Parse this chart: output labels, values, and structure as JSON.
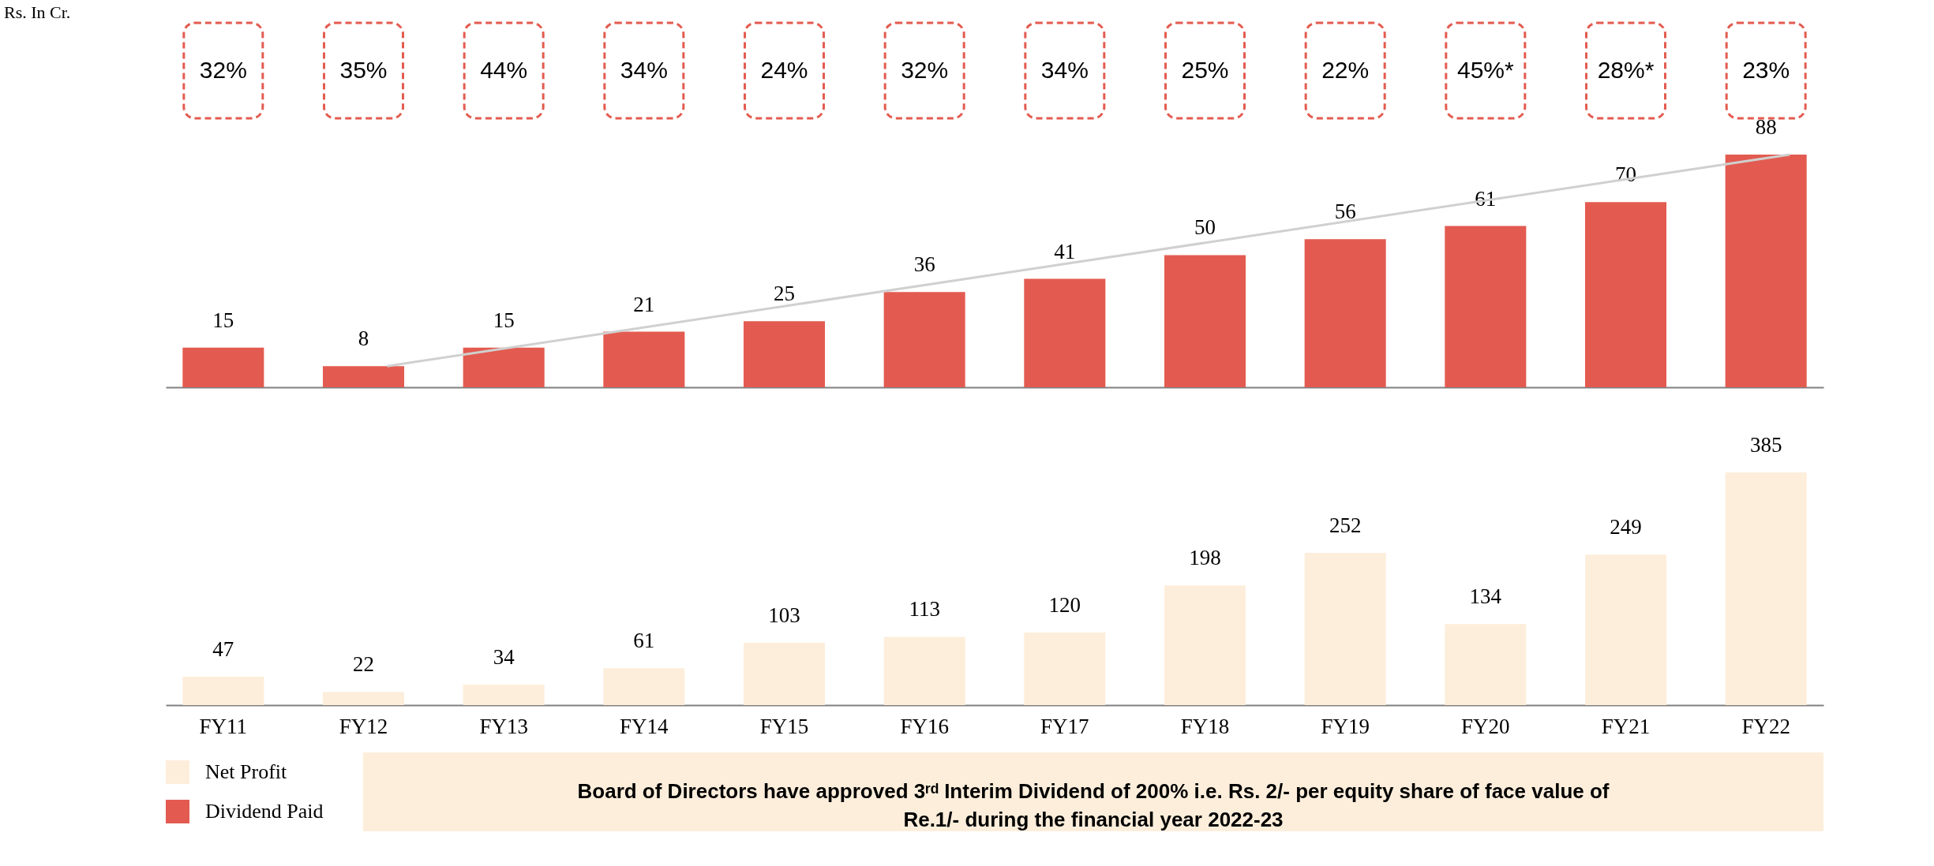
{
  "chart_data": [
    {
      "type": "bar",
      "ylabel": "Rs. In Cr.",
      "categories": [
        null,
        null,
        null,
        null,
        null,
        null,
        null,
        null,
        null,
        null,
        null,
        null
      ],
      "series": [
        {
          "name": "Dividend Paid",
          "color": "#e35b50",
          "values": [
            15,
            8,
            15,
            21,
            25,
            36,
            41,
            50,
            56,
            61,
            70,
            88
          ]
        }
      ],
      "data_labels": true,
      "tick_labels": false,
      "legend": "bottom left",
      "annotations": [
        "32%",
        "35%",
        "44%",
        "34%",
        "24%",
        "32%",
        "34%",
        "25%",
        "22%",
        "45%*",
        "28%*",
        "23%"
      ]
    },
    {
      "type": "bar",
      "categories": [
        "FY11",
        "FY12",
        "FY13",
        "FY14",
        "FY15",
        "FY16",
        "FY17",
        "FY18",
        "FY19",
        "FY20",
        "FY21",
        "FY22"
      ],
      "series": [
        {
          "name": "Net Profit",
          "color": "#fdeedb",
          "values": [
            47,
            22,
            34,
            61,
            103,
            113,
            120,
            198,
            252,
            134,
            249,
            385
          ]
        }
      ],
      "data_labels": true,
      "tick_labels": "x",
      "legend": "bottom left",
      "annotations": [
        "Board of Directors have approved 3ʳᵈ Interim Dividend of 200% i.e. Rs. 2/- per equity share of face value of Re.1/- during the financial year 2022-23"
      ]
    }
  ]
}
